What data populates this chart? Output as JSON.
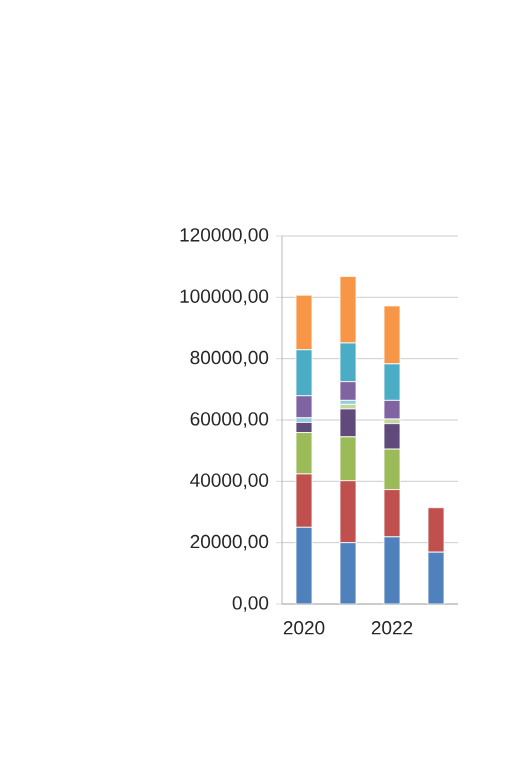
{
  "chart_data": {
    "type": "bar",
    "stacked": true,
    "categories": [
      "2020",
      null,
      "2022",
      null
    ],
    "series": [
      {
        "color": "#4f81bd",
        "values": [
          25000,
          20000,
          21900,
          16900
        ]
      },
      {
        "color": "#c0504d",
        "values": [
          17400,
          20200,
          15400,
          14500
        ]
      },
      {
        "color": "#9bbb59",
        "values": [
          13500,
          14300,
          13200,
          null
        ]
      },
      {
        "color": "#604a7b",
        "values": [
          3300,
          9100,
          8300,
          null
        ]
      },
      {
        "color": "#c3d69b",
        "values": [
          null,
          1500,
          1500,
          null
        ]
      },
      {
        "color": "#93cddd",
        "values": [
          1500,
          1300,
          null,
          null
        ]
      },
      {
        "color": "#8064a2",
        "values": [
          7200,
          6100,
          6100,
          null
        ]
      },
      {
        "color": "#4bacc6",
        "values": [
          15000,
          12600,
          11900,
          null
        ]
      },
      {
        "color": "#f79646",
        "values": [
          17800,
          21700,
          18900,
          null
        ]
      }
    ],
    "ylim": [
      0,
      120000
    ],
    "yticks": [
      {
        "value": 0,
        "label": "0,00"
      },
      {
        "value": 20000,
        "label": "20000,00"
      },
      {
        "value": 40000,
        "label": "40000,00"
      },
      {
        "value": 60000,
        "label": "60000,00"
      },
      {
        "value": 80000,
        "label": "80000,00"
      },
      {
        "value": 100000,
        "label": "100000,00"
      },
      {
        "value": 120000,
        "label": "120000,00"
      }
    ],
    "grid": "y"
  }
}
